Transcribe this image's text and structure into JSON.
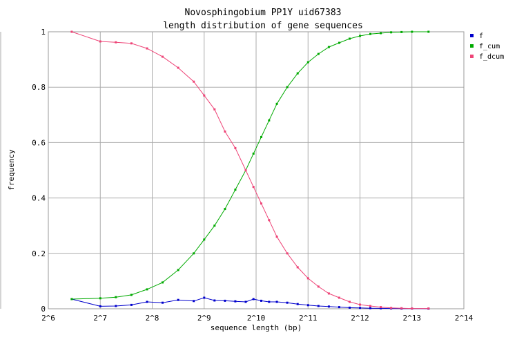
{
  "chart_data": {
    "type": "line",
    "title": [
      "Novosphingobium PP1Y uid67383",
      "length distribution of gene sequences"
    ],
    "xlabel": "sequence length (bp)",
    "ylabel": "frequency",
    "x_scale": "log2",
    "x_ticks": [
      6,
      7,
      8,
      9,
      10,
      11,
      12,
      13,
      14
    ],
    "x_tick_labels": [
      "2^6",
      "2^7",
      "2^8",
      "2^9",
      "2^10",
      "2^11",
      "2^12",
      "2^13",
      "2^14"
    ],
    "y_ticks": [
      0,
      0.2,
      0.4,
      0.6,
      0.8,
      1
    ],
    "y_tick_labels": [
      "0",
      "0.2",
      "0.4",
      "0.6",
      "0.8",
      "1"
    ],
    "xlim_exp": [
      6,
      14
    ],
    "ylim": [
      0,
      1
    ],
    "grid": true,
    "legend_position": "top-right",
    "x_exp": [
      6.45,
      7.0,
      7.3,
      7.6,
      7.9,
      8.2,
      8.5,
      8.8,
      9.0,
      9.2,
      9.4,
      9.6,
      9.8,
      9.95,
      10.1,
      10.25,
      10.4,
      10.6,
      10.8,
      11.0,
      11.2,
      11.4,
      11.6,
      11.8,
      12.0,
      12.2,
      12.4,
      12.6,
      12.8,
      13.0,
      13.32
    ],
    "series": [
      {
        "name": "f",
        "color": "#0000cc",
        "values": [
          0.035,
          0.009,
          0.01,
          0.014,
          0.025,
          0.022,
          0.032,
          0.028,
          0.04,
          0.03,
          0.029,
          0.027,
          0.025,
          0.035,
          0.029,
          0.025,
          0.025,
          0.022,
          0.017,
          0.013,
          0.01,
          0.008,
          0.006,
          0.004,
          0.003,
          0.002,
          0.0015,
          0.001,
          0.0006,
          0.0004,
          0.0002
        ]
      },
      {
        "name": "f_cum",
        "color": "#00aa00",
        "values": [
          0.035,
          0.038,
          0.042,
          0.05,
          0.07,
          0.095,
          0.14,
          0.2,
          0.25,
          0.3,
          0.36,
          0.43,
          0.5,
          0.56,
          0.62,
          0.68,
          0.74,
          0.8,
          0.85,
          0.89,
          0.92,
          0.945,
          0.96,
          0.975,
          0.985,
          0.992,
          0.995,
          0.998,
          0.999,
          1.0,
          1.0
        ]
      },
      {
        "name": "f_dcum",
        "color": "#ee4477",
        "values": [
          1.0,
          0.965,
          0.962,
          0.958,
          0.94,
          0.91,
          0.87,
          0.82,
          0.77,
          0.72,
          0.64,
          0.58,
          0.5,
          0.44,
          0.38,
          0.32,
          0.26,
          0.2,
          0.15,
          0.11,
          0.08,
          0.055,
          0.04,
          0.025,
          0.015,
          0.01,
          0.006,
          0.003,
          0.002,
          0.001,
          0.001
        ]
      }
    ]
  }
}
